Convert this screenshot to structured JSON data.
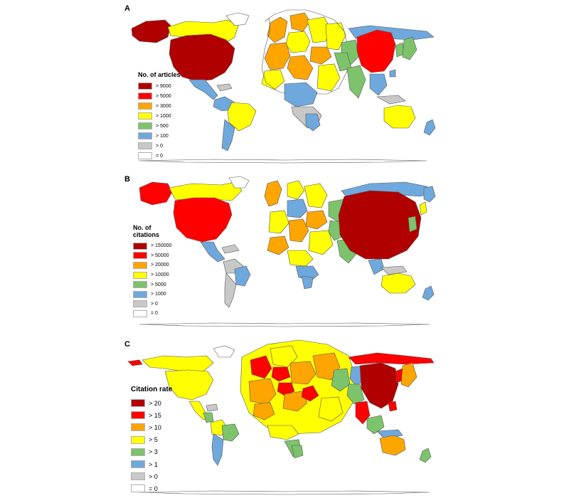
{
  "colors": {
    "dark_red": "#b00000",
    "red": "#ff0000",
    "orange": "#ffa500",
    "yellow": "#ffff00",
    "green": "#7dc36b",
    "blue": "#6fa8dc",
    "gray": "#c8c8c8",
    "white": "#ffffff",
    "outline": "#555555"
  },
  "panels": [
    {
      "letter": "A",
      "legend_title": "No. of articles",
      "legend": [
        {
          "label": "> 9000",
          "color": "#b00000"
        },
        {
          "label": "> 5000",
          "color": "#ff0000"
        },
        {
          "label": "> 3000",
          "color": "#ffa500"
        },
        {
          "label": "> 1000",
          "color": "#ffff00"
        },
        {
          "label": "> 500",
          "color": "#7dc36b"
        },
        {
          "label": "> 100",
          "color": "#6fa8dc"
        },
        {
          "label": "> 0",
          "color": "#c8c8c8"
        },
        {
          "label": "= 0",
          "color": "#ffffff"
        }
      ]
    },
    {
      "letter": "B",
      "legend_title": "No. of citations",
      "legend": [
        {
          "label": "> 150000",
          "color": "#b00000"
        },
        {
          "label": "> 50000",
          "color": "#ff0000"
        },
        {
          "label": "> 20000",
          "color": "#ffa500"
        },
        {
          "label": "> 10000",
          "color": "#ffff00"
        },
        {
          "label": "> 5000",
          "color": "#7dc36b"
        },
        {
          "label": "> 1000",
          "color": "#6fa8dc"
        },
        {
          "label": "> 0",
          "color": "#c8c8c8"
        },
        {
          "label": "= 0",
          "color": "#ffffff"
        }
      ]
    },
    {
      "letter": "C",
      "legend_title": "Citation rate",
      "legend": [
        {
          "label": "> 20",
          "color": "#b00000"
        },
        {
          "label": "> 15",
          "color": "#ff0000"
        },
        {
          "label": "> 10",
          "color": "#ffa500"
        },
        {
          "label": "> 5",
          "color": "#ffff00"
        },
        {
          "label": "> 3",
          "color": "#7dc36b"
        },
        {
          "label": "> 1",
          "color": "#6fa8dc"
        },
        {
          "label": "> 0",
          "color": "#c8c8c8"
        },
        {
          "label": "= 0",
          "color": "#ffffff"
        }
      ]
    }
  ]
}
